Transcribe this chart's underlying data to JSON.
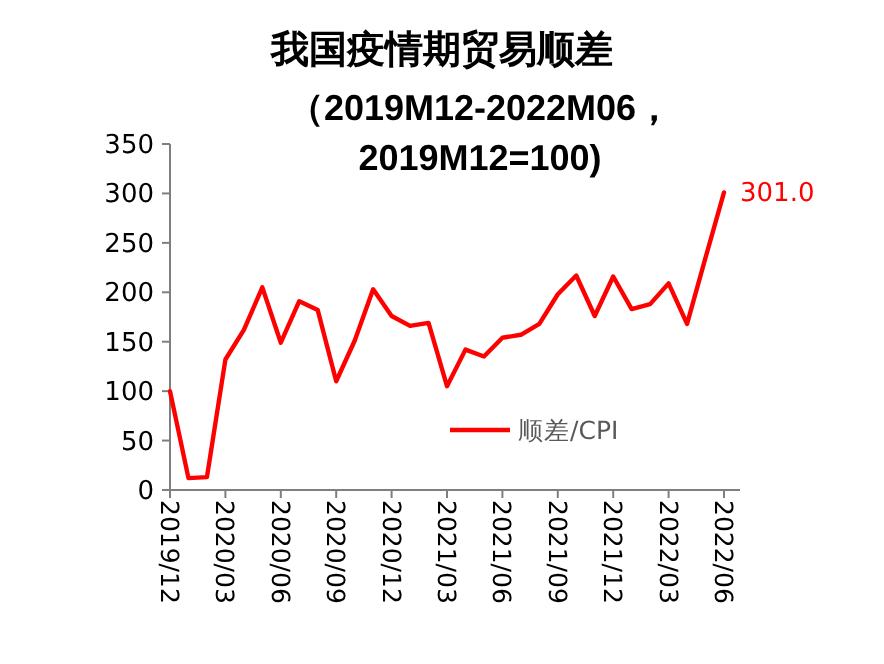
{
  "chart_data": {
    "type": "line",
    "title": "我国疫情期贸易顺差",
    "subtitle": "（2019M12-2022M06，2019M12=100)",
    "categories": [
      "2019/12",
      null,
      null,
      "2020/03",
      null,
      null,
      "2020/06",
      null,
      null,
      "2020/09",
      null,
      null,
      "2020/12",
      null,
      null,
      "2021/03",
      null,
      null,
      "2021/06",
      null,
      null,
      "2021/09",
      null,
      null,
      "2021/12",
      null,
      null,
      "2022/03",
      null,
      null,
      "2022/06"
    ],
    "series": [
      {
        "name": "顺差/CPI",
        "color": "#ff0000",
        "values": [
          100,
          12,
          13,
          132,
          162,
          205,
          149,
          191,
          182,
          110,
          151,
          203,
          176,
          166,
          169,
          105,
          142,
          135,
          154,
          157,
          168,
          198,
          217,
          176,
          216,
          183,
          188,
          209,
          168,
          235,
          301
        ],
        "value_labels": [
          null,
          null,
          null,
          null,
          null,
          null,
          null,
          null,
          null,
          null,
          null,
          null,
          null,
          null,
          null,
          null,
          null,
          null,
          null,
          null,
          null,
          null,
          null,
          null,
          null,
          null,
          null,
          null,
          null,
          null,
          "301.0"
        ]
      }
    ],
    "ylim": [
      0,
      350
    ],
    "yticks": [
      0,
      50,
      100,
      150,
      200,
      250,
      300,
      350
    ],
    "legend": "bottom right",
    "grid": false,
    "marker": "none",
    "line_style": "solid"
  }
}
